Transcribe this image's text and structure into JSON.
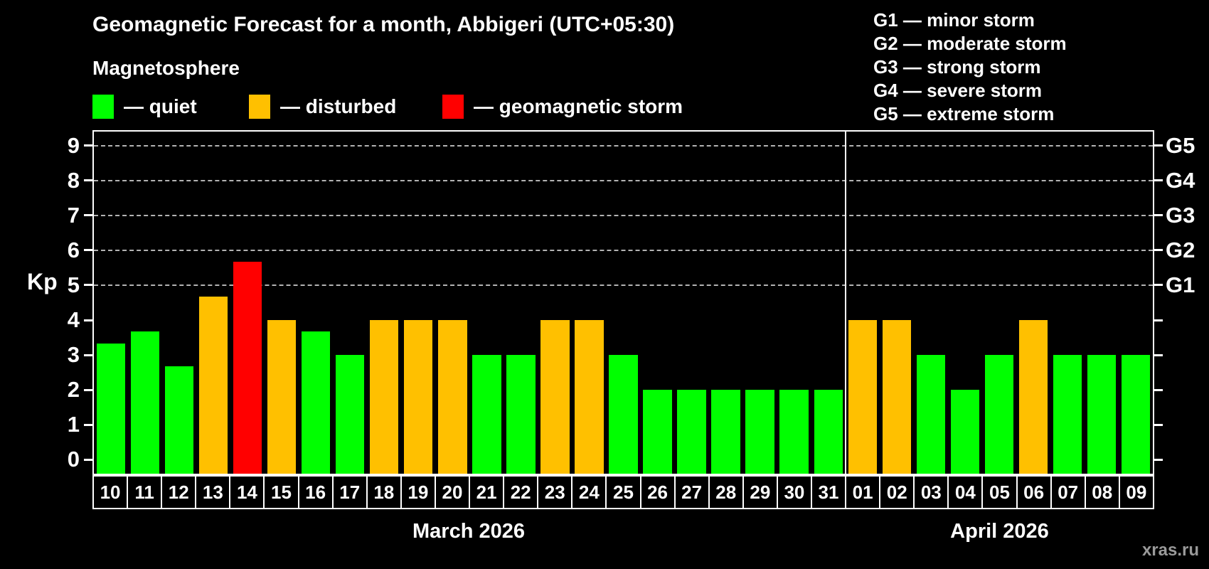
{
  "title": "Geomagnetic Forecast for a month, Abbigeri (UTC+05:30)",
  "subtitle": "Magnetosphere",
  "legend": {
    "items": [
      {
        "label": "— quiet",
        "status": "quiet"
      },
      {
        "label": "— disturbed",
        "status": "disturbed"
      },
      {
        "label": "— geomagnetic storm",
        "status": "storm"
      }
    ]
  },
  "g_legend": {
    "items": [
      "G1 — minor storm",
      "G2 — moderate storm",
      "G3 — strong storm",
      "G4 — severe storm",
      "G5 — extreme storm"
    ]
  },
  "watermark": "xras.ru",
  "chart_data": {
    "type": "bar",
    "ylabel": "Kp",
    "ylim": [
      -0.4,
      9.4
    ],
    "yticks": [
      0,
      1,
      2,
      3,
      4,
      5,
      6,
      7,
      8,
      9
    ],
    "grid": "dashed horizontal lines at Kp 5-9 only",
    "g_levels": [
      {
        "kp": 5,
        "label": "G1"
      },
      {
        "kp": 6,
        "label": "G2"
      },
      {
        "kp": 7,
        "label": "G3"
      },
      {
        "kp": 8,
        "label": "G4"
      },
      {
        "kp": 9,
        "label": "G5"
      }
    ],
    "status_colors": {
      "quiet": "#00ff00",
      "disturbed": "#ffc000",
      "storm": "#ff0000"
    },
    "months": [
      {
        "label": "March 2026",
        "days": [
          {
            "day": "10",
            "kp": 3.33,
            "status": "quiet"
          },
          {
            "day": "11",
            "kp": 3.67,
            "status": "quiet"
          },
          {
            "day": "12",
            "kp": 2.67,
            "status": "quiet"
          },
          {
            "day": "13",
            "kp": 4.67,
            "status": "disturbed"
          },
          {
            "day": "14",
            "kp": 5.67,
            "status": "storm"
          },
          {
            "day": "15",
            "kp": 4.0,
            "status": "disturbed"
          },
          {
            "day": "16",
            "kp": 3.67,
            "status": "quiet"
          },
          {
            "day": "17",
            "kp": 3.0,
            "status": "quiet"
          },
          {
            "day": "18",
            "kp": 4.0,
            "status": "disturbed"
          },
          {
            "day": "19",
            "kp": 4.0,
            "status": "disturbed"
          },
          {
            "day": "20",
            "kp": 4.0,
            "status": "disturbed"
          },
          {
            "day": "21",
            "kp": 3.0,
            "status": "quiet"
          },
          {
            "day": "22",
            "kp": 3.0,
            "status": "quiet"
          },
          {
            "day": "23",
            "kp": 4.0,
            "status": "disturbed"
          },
          {
            "day": "24",
            "kp": 4.0,
            "status": "disturbed"
          },
          {
            "day": "25",
            "kp": 3.0,
            "status": "quiet"
          },
          {
            "day": "26",
            "kp": 2.0,
            "status": "quiet"
          },
          {
            "day": "27",
            "kp": 2.0,
            "status": "quiet"
          },
          {
            "day": "28",
            "kp": 2.0,
            "status": "quiet"
          },
          {
            "day": "29",
            "kp": 2.0,
            "status": "quiet"
          },
          {
            "day": "30",
            "kp": 2.0,
            "status": "quiet"
          },
          {
            "day": "31",
            "kp": 2.0,
            "status": "quiet"
          }
        ]
      },
      {
        "label": "April 2026",
        "days": [
          {
            "day": "01",
            "kp": 4.0,
            "status": "disturbed"
          },
          {
            "day": "02",
            "kp": 4.0,
            "status": "disturbed"
          },
          {
            "day": "03",
            "kp": 3.0,
            "status": "quiet"
          },
          {
            "day": "04",
            "kp": 2.0,
            "status": "quiet"
          },
          {
            "day": "05",
            "kp": 3.0,
            "status": "quiet"
          },
          {
            "day": "06",
            "kp": 4.0,
            "status": "disturbed"
          },
          {
            "day": "07",
            "kp": 3.0,
            "status": "quiet"
          },
          {
            "day": "08",
            "kp": 3.0,
            "status": "quiet"
          },
          {
            "day": "09",
            "kp": 3.0,
            "status": "quiet"
          }
        ]
      }
    ]
  }
}
